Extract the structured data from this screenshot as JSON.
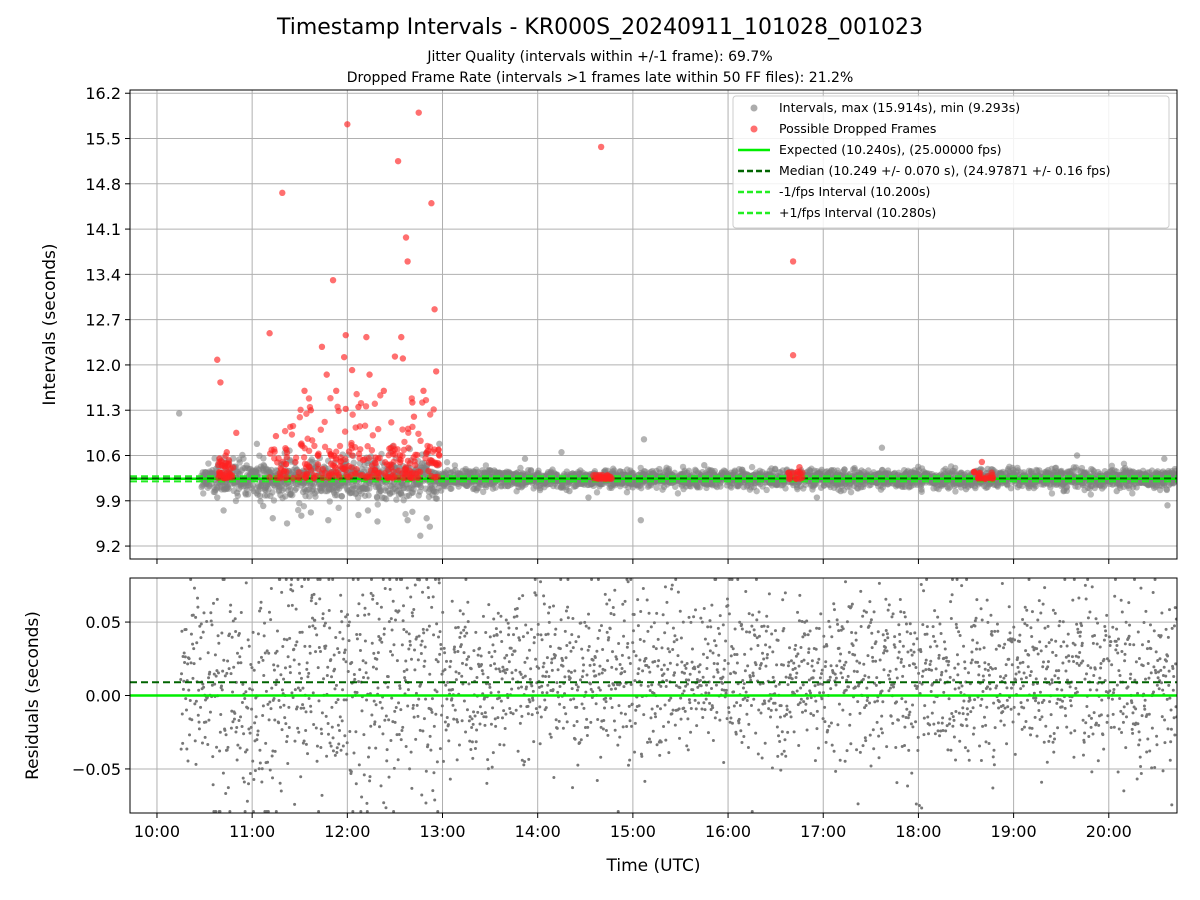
{
  "figure": {
    "title": "Timestamp Intervals - KR000S_20240911_101028_001023",
    "subtitle_jitter": "Jitter Quality (intervals within +/-1 frame): 69.7%",
    "subtitle_dropped": "Dropped Frame Rate (intervals >1 frames late within 50 FF files): 21.2%"
  },
  "chart_data": [
    {
      "type": "scatter",
      "panel": "intervals",
      "ylabel": "Intervals (seconds)",
      "xlabel": "",
      "ylim": [
        9.0,
        16.25
      ],
      "xlim": [
        "09:43",
        "20:43"
      ],
      "yticks": [
        9.2,
        9.9,
        10.6,
        11.3,
        12.0,
        12.7,
        13.4,
        14.1,
        14.8,
        15.5,
        16.2
      ],
      "ytick_labels": [
        "9.2",
        "9.9",
        "10.6",
        "11.3",
        "12.0",
        "12.7",
        "13.4",
        "14.1",
        "14.8",
        "15.5",
        "16.2"
      ],
      "grid": true,
      "legend_position": "upper right",
      "legend": [
        "Intervals, max (15.914s), min (9.293s)",
        "Possible Dropped Frames",
        "Expected (10.240s), (25.00000 fps)",
        "Median (10.249 +/- 0.070 s), (24.97871 +/- 0.16 fps)",
        "-1/fps Interval (10.200s)",
        "+1/fps Interval (10.280s)"
      ],
      "reference_lines": [
        {
          "label": "Expected",
          "y": 10.24,
          "color": "#00ee00",
          "style": "solid"
        },
        {
          "label": "Median",
          "y": 10.249,
          "color": "#006400",
          "style": "dashed"
        },
        {
          "label": "-1/fps Interval",
          "y": 10.2,
          "color": "#22ee22",
          "style": "dashed"
        },
        {
          "label": "+1/fps Interval",
          "y": 10.28,
          "color": "#22ee22",
          "style": "dashed"
        }
      ],
      "series": [
        {
          "name": "Intervals, max (15.914s), min (9.293s)",
          "color": "#808080",
          "summary": {
            "max": 15.914,
            "min": 9.293,
            "median": 10.249,
            "count_approx": 3800
          },
          "points": [
            [
              "10:14",
              11.25
            ],
            [
              "10:42",
              9.75
            ],
            [
              "10:38",
              9.95
            ],
            [
              "11:03",
              10.78
            ],
            [
              "11:07",
              9.82
            ],
            [
              "11:13",
              9.63
            ],
            [
              "11:22",
              9.55
            ],
            [
              "11:31",
              9.67
            ],
            [
              "11:37",
              9.72
            ],
            [
              "11:48",
              9.6
            ],
            [
              "12:07",
              9.68
            ],
            [
              "12:13",
              9.75
            ],
            [
              "12:19",
              9.58
            ],
            [
              "12:22",
              9.95
            ],
            [
              "12:38",
              9.6
            ],
            [
              "12:41",
              9.73
            ],
            [
              "12:46",
              9.36
            ],
            [
              "12:50",
              9.63
            ],
            [
              "12:52",
              9.5
            ],
            [
              "12:58",
              10.78
            ],
            [
              "13:52",
              10.55
            ],
            [
              "14:15",
              10.65
            ],
            [
              "14:20",
              10.05
            ],
            [
              "14:32",
              9.95
            ],
            [
              "15:05",
              9.6
            ],
            [
              "15:07",
              10.85
            ],
            [
              "15:45",
              10.45
            ],
            [
              "16:40",
              10.35
            ],
            [
              "16:56",
              9.95
            ],
            [
              "17:11",
              10.05
            ],
            [
              "17:37",
              10.72
            ],
            [
              "18:30",
              10.08
            ],
            [
              "19:40",
              10.6
            ],
            [
              "20:05",
              10.05
            ],
            [
              "20:35",
              10.55
            ],
            [
              "20:37",
              9.83
            ]
          ]
        },
        {
          "name": "Possible Dropped Frames",
          "color": "#ff2222",
          "points": [
            [
              "10:38",
              12.08
            ],
            [
              "10:40",
              11.73
            ],
            [
              "10:50",
              10.95
            ],
            [
              "10:44",
              10.65
            ],
            [
              "11:11",
              12.49
            ],
            [
              "11:15",
              10.9
            ],
            [
              "11:19",
              14.66
            ],
            [
              "11:33",
              11.6
            ],
            [
              "11:37",
              11.3
            ],
            [
              "11:44",
              12.28
            ],
            [
              "11:47",
              11.85
            ],
            [
              "11:51",
              13.31
            ],
            [
              "11:53",
              11.6
            ],
            [
              "11:58",
              12.12
            ],
            [
              "11:59",
              12.46
            ],
            [
              "11:59",
              11.32
            ],
            [
              "12:00",
              15.72
            ],
            [
              "12:03",
              11.92
            ],
            [
              "12:07",
              11.35
            ],
            [
              "12:12",
              12.43
            ],
            [
              "12:14",
              11.85
            ],
            [
              "12:23",
              11.6
            ],
            [
              "12:30",
              12.13
            ],
            [
              "12:32",
              15.15
            ],
            [
              "12:34",
              12.43
            ],
            [
              "12:35",
              12.1
            ],
            [
              "12:37",
              13.97
            ],
            [
              "12:38",
              13.6
            ],
            [
              "12:41",
              11.42
            ],
            [
              "12:42",
              11.2
            ],
            [
              "12:45",
              15.9
            ],
            [
              "12:48",
              11.6
            ],
            [
              "12:53",
              14.5
            ],
            [
              "12:55",
              12.86
            ],
            [
              "12:56",
              11.9
            ],
            [
              "12:58",
              10.6
            ],
            [
              "14:40",
              15.37
            ],
            [
              "16:41",
              13.6
            ],
            [
              "16:41",
              12.15
            ],
            [
              "16:45",
              10.42
            ],
            [
              "18:40",
              10.5
            ]
          ]
        }
      ]
    },
    {
      "type": "scatter",
      "panel": "residuals",
      "ylabel": "Residuals (seconds)",
      "xlabel": "Time (UTC)",
      "ylim": [
        -0.08,
        0.08
      ],
      "xlim": [
        "09:43",
        "20:43"
      ],
      "yticks": [
        -0.05,
        0.0,
        0.05
      ],
      "ytick_labels": [
        "−0.05",
        "0.00",
        "0.05"
      ],
      "xticks": [
        "10:00",
        "11:00",
        "12:00",
        "13:00",
        "14:00",
        "15:00",
        "16:00",
        "17:00",
        "18:00",
        "19:00",
        "20:00"
      ],
      "grid": true,
      "reference_lines": [
        {
          "label": "Expected",
          "y": 0.0,
          "color": "#00ee00",
          "style": "solid"
        },
        {
          "label": "Median",
          "y": 0.009,
          "color": "#006400",
          "style": "dashed"
        }
      ],
      "series": [
        {
          "name": "Residuals",
          "color": "#777777",
          "summary": {
            "x_start": "10:15",
            "x_end": "20:43",
            "range": [
              -0.08,
              0.08
            ],
            "count_approx": 2600
          }
        }
      ]
    }
  ]
}
